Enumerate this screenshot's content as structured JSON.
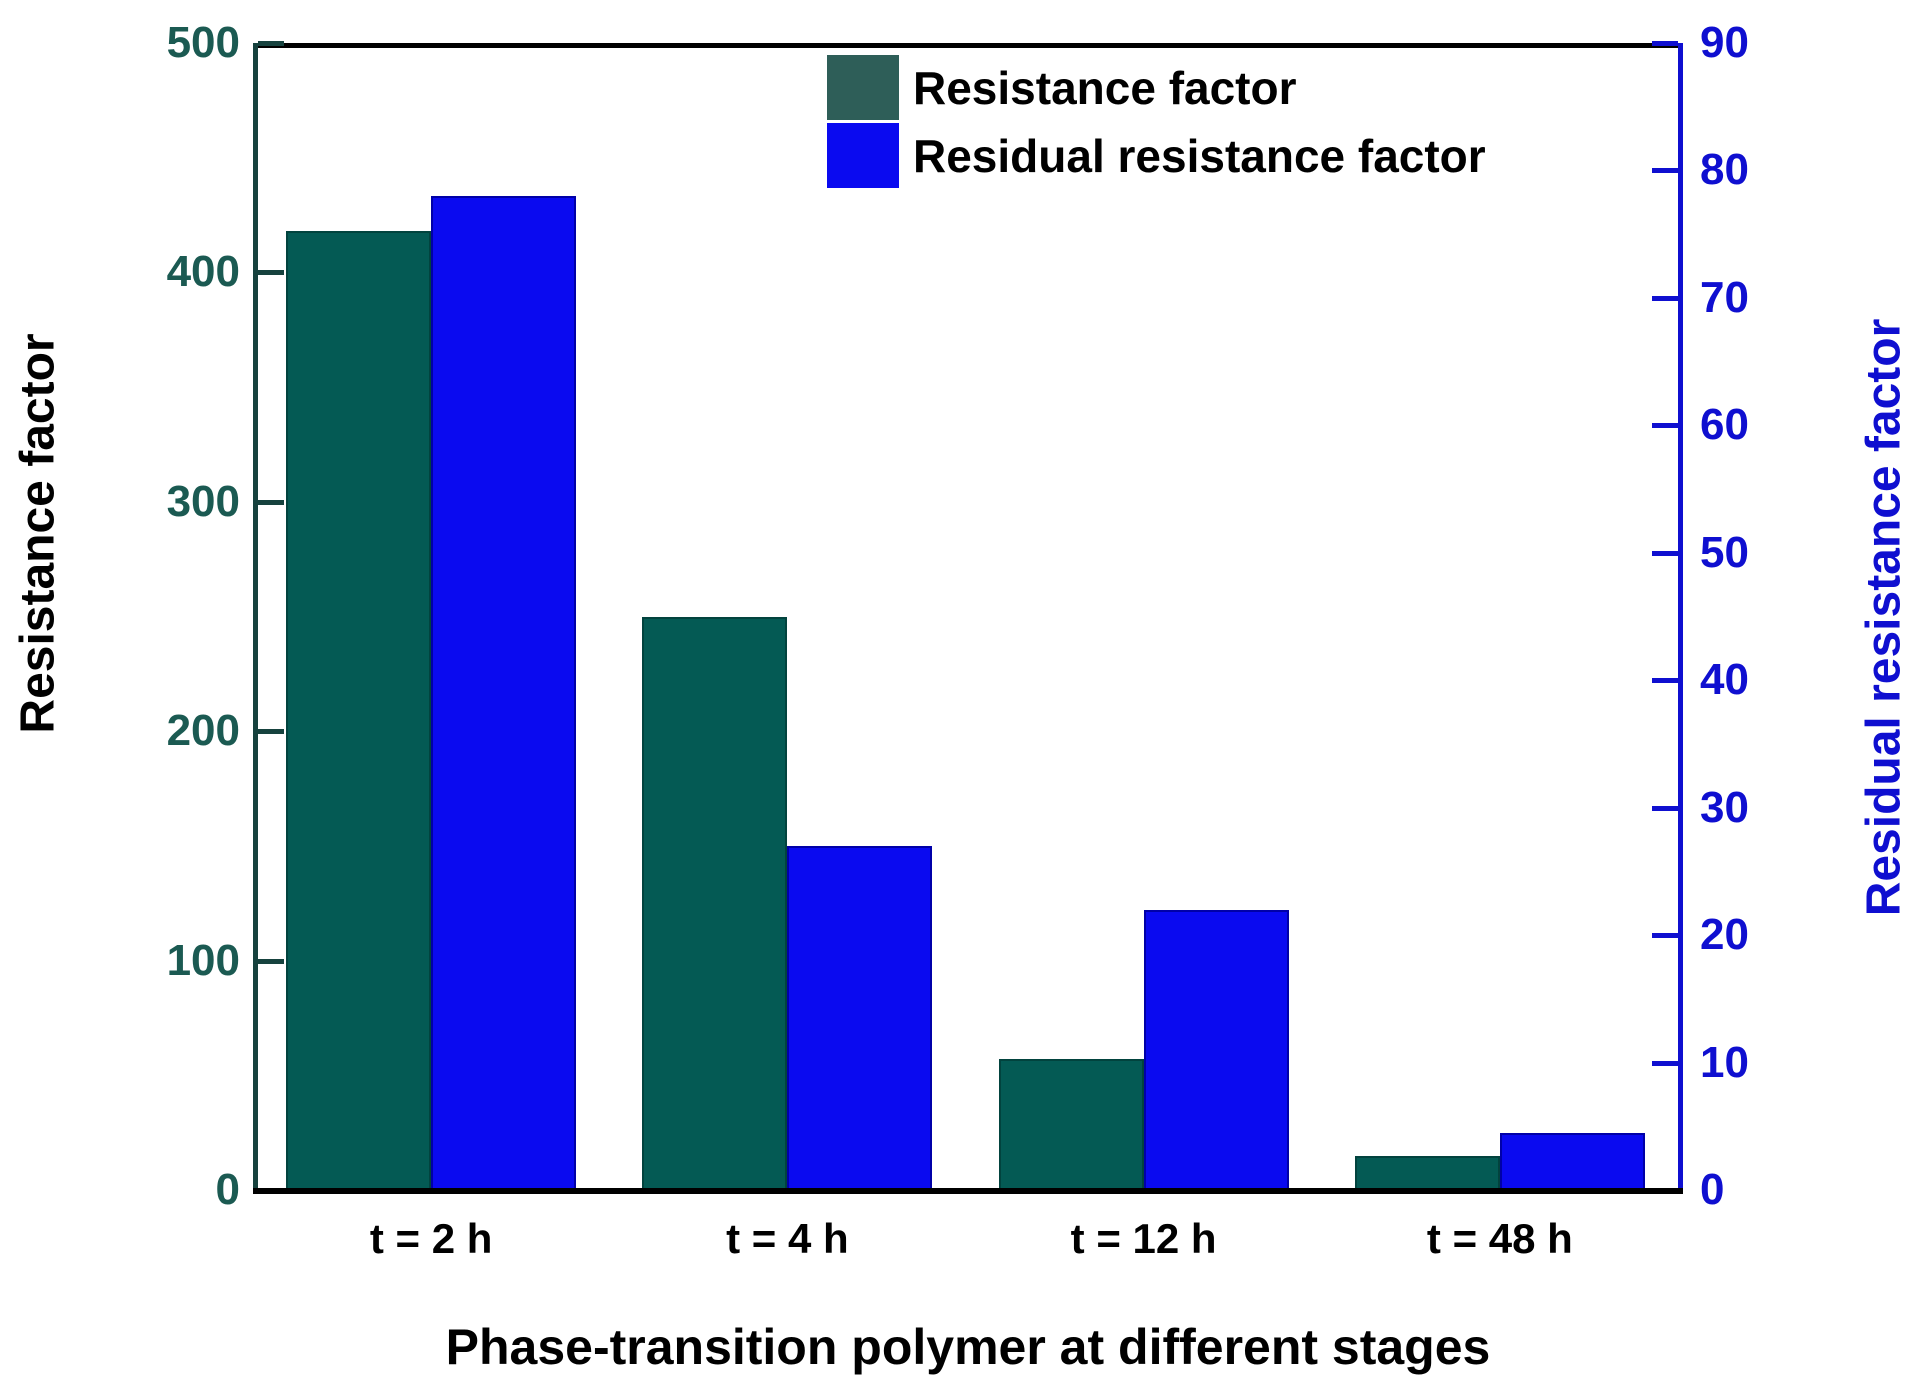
{
  "chart_data": {
    "type": "bar",
    "categories": [
      "t = 2 h",
      "t = 4 h",
      "t = 12 h",
      "t = 48 h"
    ],
    "series": [
      {
        "name": "Resistance factor",
        "axis": "left",
        "color": "#045a54",
        "values": [
          418,
          250,
          57,
          15
        ]
      },
      {
        "name": "Residual resistance factor",
        "axis": "right",
        "color": "#0a0af0",
        "values": [
          78,
          27,
          22,
          4.5
        ]
      }
    ],
    "title": "",
    "xlabel": "Phase-transition polymer at different stages",
    "ylabel_left": "Resistance factor",
    "ylabel_right": "Residual resistance factor",
    "ylim_left": [
      0,
      500
    ],
    "yticks_left": [
      "0",
      "100",
      "200",
      "300",
      "400",
      "500"
    ],
    "ylim_right": [
      0,
      90
    ],
    "yticks_right": [
      "0",
      "10",
      "20",
      "30",
      "40",
      "50",
      "60",
      "70",
      "80",
      "90"
    ],
    "grid": false,
    "legend_position": "top-center",
    "legend": [
      "Resistance factor",
      "Residual resistance factor"
    ]
  },
  "colors": {
    "bar_teal": "#045a54",
    "bar_blue": "#0a0af0",
    "left_axis_text": "#1b5a52",
    "right_axis": "#0f0fd0",
    "black": "#000000"
  }
}
